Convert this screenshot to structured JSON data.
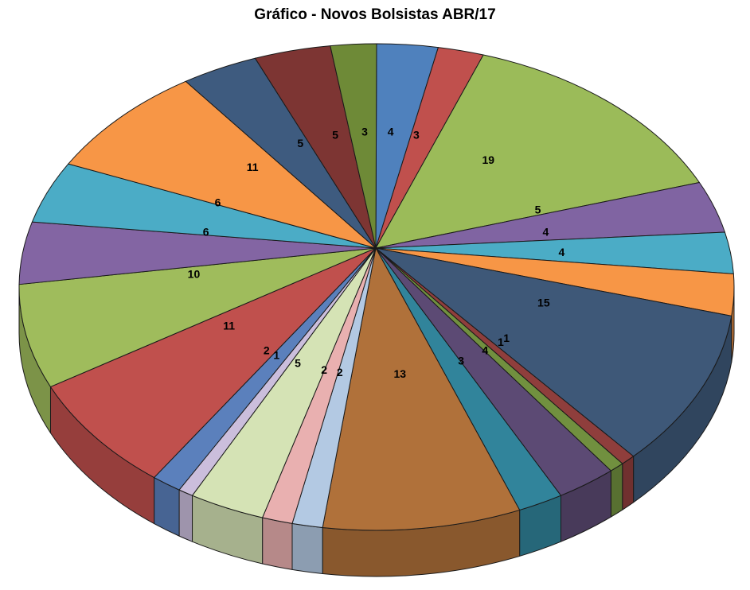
{
  "chart_data": {
    "type": "pie",
    "title": "Gráfico - Novos Bolsistas ABR/17",
    "is_3d": true,
    "legend": "none",
    "start_angle_deg": 0,
    "direction": "clockwise",
    "background": "#FFFFFF",
    "outline_color": "#1a1a1a",
    "label_color": "#000000",
    "total": 145,
    "values": [
      4,
      3,
      19,
      5,
      4,
      4,
      15,
      1,
      1,
      4,
      3,
      13,
      2,
      2,
      5,
      1,
      2,
      11,
      10,
      6,
      6,
      11,
      5,
      5,
      3
    ],
    "labels": [
      "4",
      "3",
      "19",
      "5",
      "4",
      "4",
      "15",
      "1",
      "1",
      "4",
      "3",
      "13",
      "2",
      "2",
      "5",
      "1",
      "2",
      "11",
      "10",
      "6",
      "6",
      "11",
      "5",
      "5",
      "3"
    ],
    "colors": [
      "#4F81BD",
      "#C0504D",
      "#9BBB59",
      "#8064A2",
      "#4BACC6",
      "#F79646",
      "#3E5878",
      "#8F3E3C",
      "#71903F",
      "#5C4A74",
      "#31849B",
      "#B0713A",
      "#B3C9E3",
      "#E9B0B0",
      "#D5E3B5",
      "#CBBEDC",
      "#5B80BC",
      "#C0504D",
      "#9FBC5C",
      "#8365A3",
      "#4BACC6",
      "#F79646",
      "#3E5B7F",
      "#7D3533",
      "#6E8A37"
    ]
  }
}
